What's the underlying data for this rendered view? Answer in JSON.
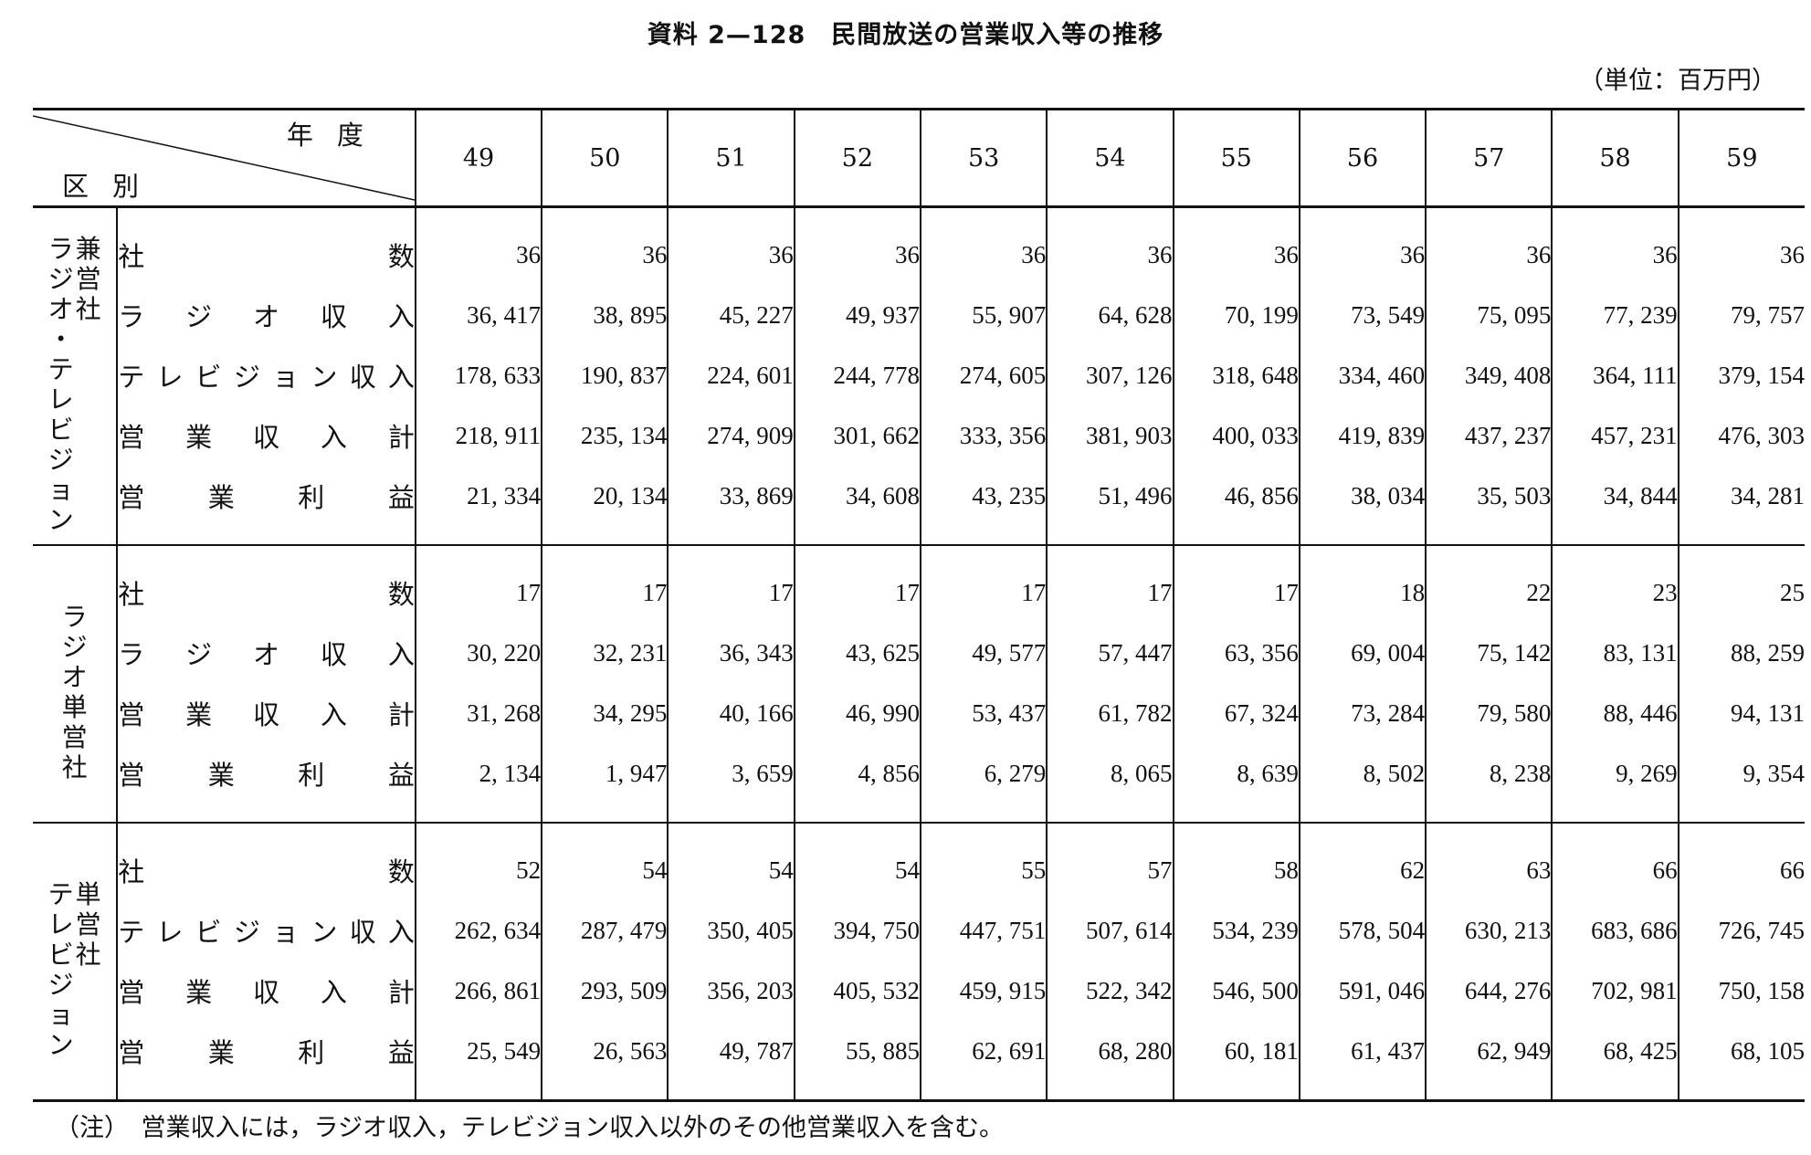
{
  "title": "資料 2—128　民間放送の営業収入等の推移",
  "unit": "（単位：百万円）",
  "header": {
    "corner_top": "年度",
    "corner_bottom": "区別",
    "years": [
      "49",
      "50",
      "51",
      "52",
      "53",
      "54",
      "55",
      "56",
      "57",
      "58",
      "59"
    ]
  },
  "groups": [
    {
      "label_columns": [
        "兼営社",
        "ラジオ・テレビジョン"
      ],
      "rows": [
        {
          "label": "社数",
          "values": [
            "36",
            "36",
            "36",
            "36",
            "36",
            "36",
            "36",
            "36",
            "36",
            "36",
            "36"
          ]
        },
        {
          "label": "ラジオ収入",
          "values": [
            "36, 417",
            "38, 895",
            "45, 227",
            "49, 937",
            "55, 907",
            "64, 628",
            "70, 199",
            "73, 549",
            "75, 095",
            "77, 239",
            "79, 757"
          ]
        },
        {
          "label": "テレビジョン収入",
          "values": [
            "178, 633",
            "190, 837",
            "224, 601",
            "244, 778",
            "274, 605",
            "307, 126",
            "318, 648",
            "334, 460",
            "349, 408",
            "364, 111",
            "379, 154"
          ]
        },
        {
          "label": "営業収入計",
          "values": [
            "218, 911",
            "235, 134",
            "274, 909",
            "301, 662",
            "333, 356",
            "381, 903",
            "400, 033",
            "419, 839",
            "437, 237",
            "457, 231",
            "476, 303"
          ]
        },
        {
          "label": "営業利益",
          "values": [
            "21, 334",
            "20, 134",
            "33, 869",
            "34, 608",
            "43, 235",
            "51, 496",
            "46, 856",
            "38, 034",
            "35, 503",
            "34, 844",
            "34, 281"
          ]
        }
      ]
    },
    {
      "label_columns": [
        "ラジオ単営社"
      ],
      "rows": [
        {
          "label": "社数",
          "values": [
            "17",
            "17",
            "17",
            "17",
            "17",
            "17",
            "17",
            "18",
            "22",
            "23",
            "25"
          ]
        },
        {
          "label": "ラジオ収入",
          "values": [
            "30, 220",
            "32, 231",
            "36, 343",
            "43, 625",
            "49, 577",
            "57, 447",
            "63, 356",
            "69, 004",
            "75, 142",
            "83, 131",
            "88, 259"
          ]
        },
        {
          "label": "営業収入計",
          "values": [
            "31, 268",
            "34, 295",
            "40, 166",
            "46, 990",
            "53, 437",
            "61, 782",
            "67, 324",
            "73, 284",
            "79, 580",
            "88, 446",
            "94, 131"
          ]
        },
        {
          "label": "営業利益",
          "values": [
            "2, 134",
            "1, 947",
            "3, 659",
            "4, 856",
            "6, 279",
            "8, 065",
            "8, 639",
            "8, 502",
            "8, 238",
            "9, 269",
            "9, 354"
          ]
        }
      ]
    },
    {
      "label_columns": [
        "単営社",
        "テレビジョン"
      ],
      "rows": [
        {
          "label": "社数",
          "values": [
            "52",
            "54",
            "54",
            "54",
            "55",
            "57",
            "58",
            "62",
            "63",
            "66",
            "66"
          ]
        },
        {
          "label": "テレビジョン収入",
          "values": [
            "262, 634",
            "287, 479",
            "350, 405",
            "394, 750",
            "447, 751",
            "507, 614",
            "534, 239",
            "578, 504",
            "630, 213",
            "683, 686",
            "726, 745"
          ]
        },
        {
          "label": "営業収入計",
          "values": [
            "266, 861",
            "293, 509",
            "356, 203",
            "405, 532",
            "459, 915",
            "522, 342",
            "546, 500",
            "591, 046",
            "644, 276",
            "702, 981",
            "750, 158"
          ]
        },
        {
          "label": "営業利益",
          "values": [
            "25, 549",
            "26, 563",
            "49, 787",
            "55, 885",
            "62, 691",
            "68, 280",
            "60, 181",
            "61, 437",
            "62, 949",
            "68, 425",
            "68, 105"
          ]
        }
      ]
    }
  ],
  "note": "（注）　営業収入には，ラジオ収入，テレビジョン収入以外のその他営業収入を含む。"
}
